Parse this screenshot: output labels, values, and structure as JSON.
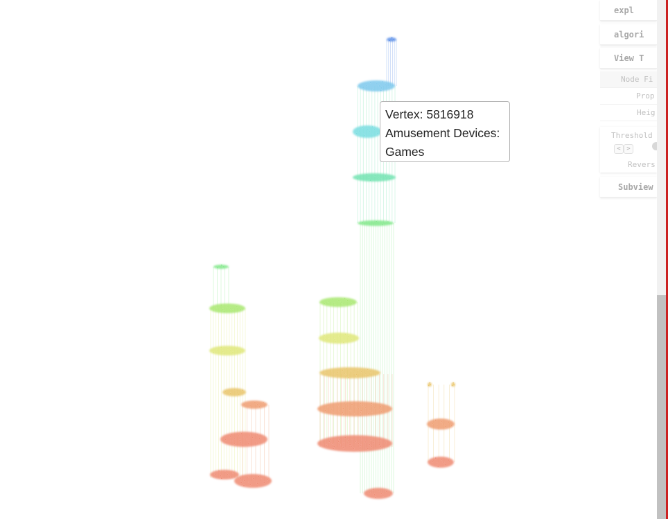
{
  "panel": {
    "buttons": [
      {
        "key": "explore",
        "label": "expl"
      },
      {
        "key": "algorithm",
        "label": "algori"
      },
      {
        "key": "view",
        "label": "View T"
      },
      {
        "key": "subview",
        "label": "Subview"
      }
    ],
    "node_filter_label": "Node Fi",
    "property_label": "Prop",
    "height_label": "Heig",
    "threshold_label": "Threshold",
    "prev_arrow": "<",
    "next_arrow": ">",
    "reverse_label": "Revers"
  },
  "tooltip": {
    "line1": "Vertex: 5816918",
    "line2": "Amusement Devices:",
    "line3": "Games"
  },
  "colors": {
    "layer_blue": "#5b8ee8",
    "layer_sky": "#7cc8ec",
    "layer_cyan": "#78dde0",
    "layer_mint": "#72e3b0",
    "layer_green": "#80e888",
    "layer_lime": "#a8e870",
    "layer_yellow": "#dfe87a",
    "layer_gold": "#e9c46a",
    "layer_orange": "#ee9c70",
    "layer_salmon": "#ee8a72",
    "scrollbar_thumb": "#c1c1c1",
    "edge_accent": "#cc2222"
  }
}
